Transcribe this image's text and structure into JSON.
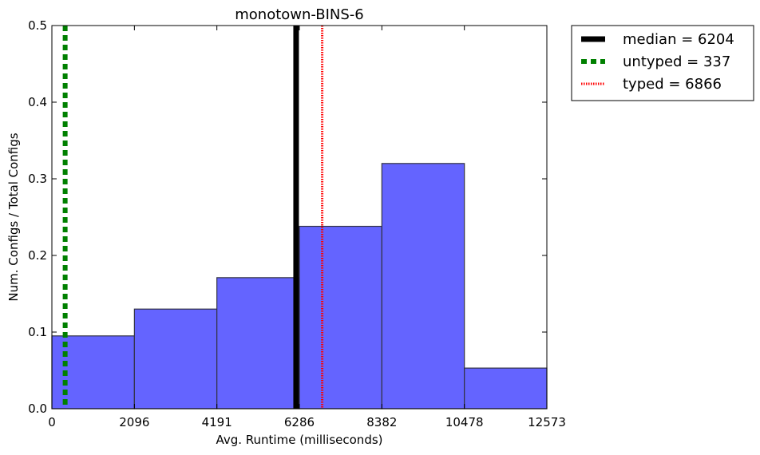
{
  "chart_data": {
    "type": "bar",
    "title": "monotown-BINS-6",
    "xlabel": "Avg. Runtime (milliseconds)",
    "ylabel": "Num. Configs / Total Configs",
    "xlim": [
      0,
      12573
    ],
    "ylim": [
      0,
      0.5
    ],
    "x_ticks": [
      0,
      2096,
      4191,
      6286,
      8382,
      10478,
      12573
    ],
    "x_tick_labels": [
      "0",
      "2096",
      "4191",
      "6286",
      "8382",
      "10478",
      "12573"
    ],
    "y_ticks": [
      0.0,
      0.1,
      0.2,
      0.3,
      0.4,
      0.5
    ],
    "y_tick_labels": [
      "0.0",
      "0.1",
      "0.2",
      "0.3",
      "0.4",
      "0.5"
    ],
    "bins": [
      {
        "start": 0,
        "end": 2096,
        "value": 0.095
      },
      {
        "start": 2096,
        "end": 4191,
        "value": 0.13
      },
      {
        "start": 4191,
        "end": 6286,
        "value": 0.171
      },
      {
        "start": 6286,
        "end": 8382,
        "value": 0.238
      },
      {
        "start": 8382,
        "end": 10478,
        "value": 0.32
      },
      {
        "start": 10478,
        "end": 12573,
        "value": 0.053
      }
    ],
    "bar_color": "#6464ff",
    "vlines": [
      {
        "label": "median = 6204",
        "x": 6204,
        "color": "#000000",
        "style": "solid"
      },
      {
        "label": "untyped = 337",
        "x": 337,
        "color": "#008000",
        "style": "dashed"
      },
      {
        "label": "typed = 6866",
        "x": 6866,
        "color": "#ff0000",
        "style": "dotted"
      }
    ],
    "legend_position": "outside-top-right",
    "grid": false
  }
}
